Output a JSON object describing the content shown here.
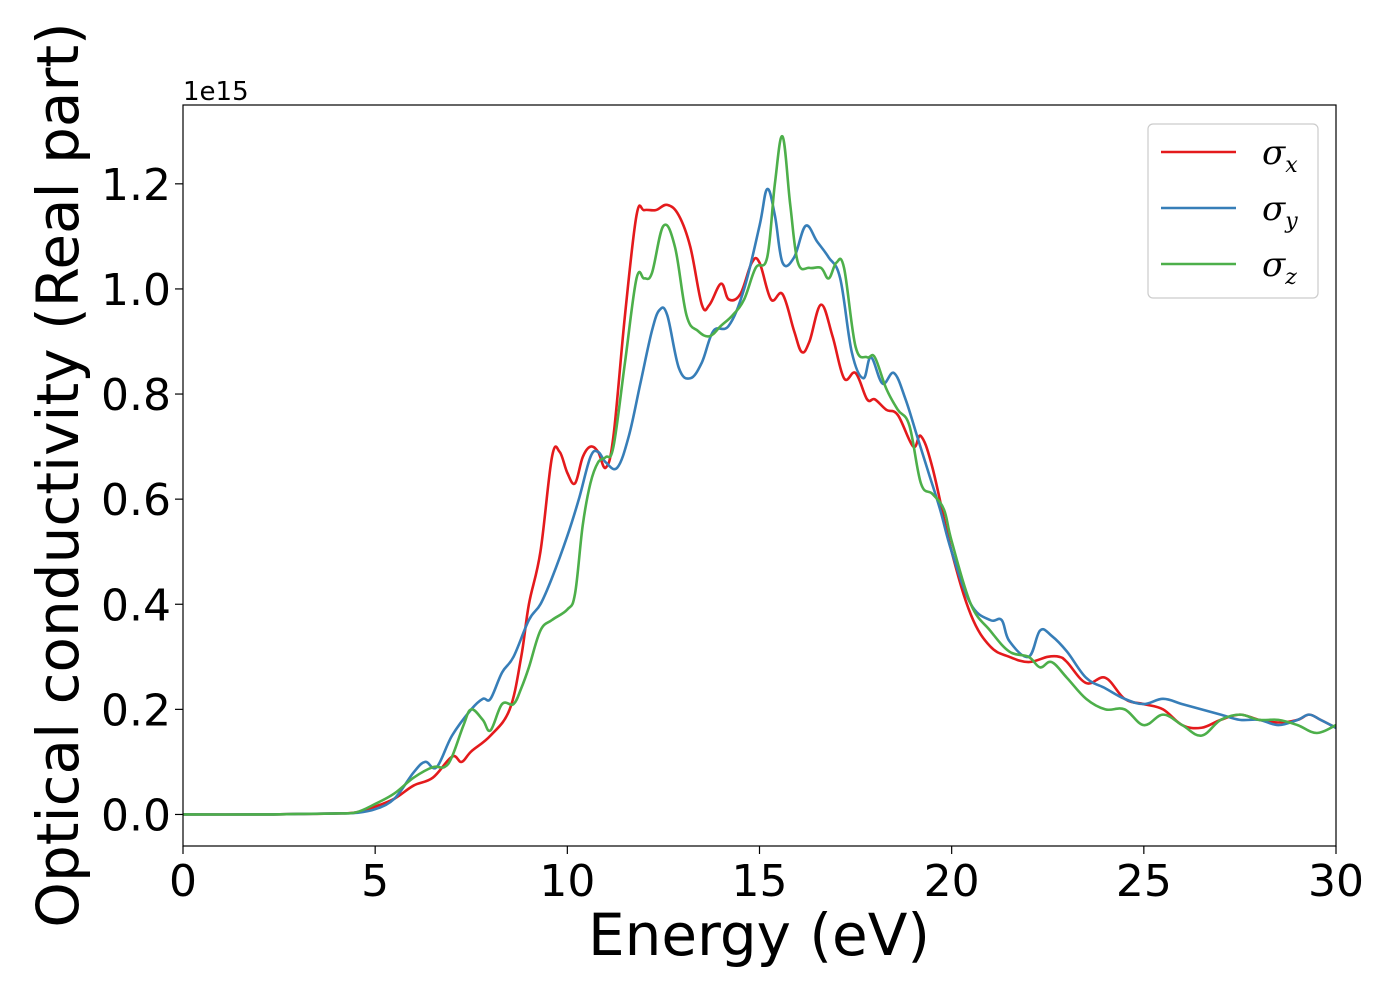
{
  "chart_data": {
    "type": "line",
    "xlabel": "Energy (eV)",
    "ylabel": "Optical conductivity (Real part)",
    "y_offset_label": "1e15",
    "xlim": [
      0,
      30
    ],
    "ylim": [
      -0.06,
      1.35
    ],
    "xticks": [
      0,
      5,
      10,
      15,
      20,
      25,
      30
    ],
    "yticks": [
      0.0,
      0.2,
      0.4,
      0.6,
      0.8,
      1.0,
      1.2
    ],
    "ytick_labels": [
      "0.0",
      "0.2",
      "0.4",
      "0.6",
      "0.8",
      "1.0",
      "1.2"
    ],
    "grid": false,
    "legend_position": "top-right",
    "series": [
      {
        "name": "σx",
        "symbol": "σ",
        "subscript": "x",
        "color": "#e41a1c",
        "x": [
          0,
          2,
          3,
          4,
          4.5,
          5,
          5.5,
          6,
          6.5,
          7,
          7.25,
          7.5,
          8,
          8.5,
          8.8,
          9,
          9.3,
          9.6,
          9.8,
          10,
          10.2,
          10.4,
          10.6,
          10.8,
          11,
          11.2,
          11.5,
          11.8,
          12,
          12.3,
          12.6,
          12.9,
          13.2,
          13.5,
          13.7,
          14,
          14.2,
          14.5,
          14.8,
          15,
          15.3,
          15.6,
          15.9,
          16.1,
          16.3,
          16.6,
          16.9,
          17.2,
          17.5,
          17.8,
          18,
          18.3,
          18.6,
          19,
          19.2,
          19.5,
          20,
          20.5,
          21,
          21.5,
          22,
          22.5,
          22.8,
          23,
          23.5,
          24,
          24.5,
          25,
          25.5,
          26,
          26.5,
          27,
          27.5,
          28,
          28.5,
          29,
          29.3,
          29.6,
          30
        ],
        "y": [
          0,
          0,
          0.001,
          0.002,
          0.004,
          0.015,
          0.03,
          0.055,
          0.07,
          0.11,
          0.1,
          0.12,
          0.15,
          0.2,
          0.3,
          0.4,
          0.5,
          0.68,
          0.69,
          0.65,
          0.63,
          0.68,
          0.7,
          0.69,
          0.66,
          0.72,
          0.95,
          1.14,
          1.15,
          1.15,
          1.16,
          1.14,
          1.08,
          0.97,
          0.97,
          1.01,
          0.98,
          0.99,
          1.05,
          1.05,
          0.98,
          0.99,
          0.92,
          0.88,
          0.9,
          0.97,
          0.91,
          0.83,
          0.84,
          0.79,
          0.79,
          0.77,
          0.76,
          0.7,
          0.72,
          0.66,
          0.5,
          0.38,
          0.32,
          0.3,
          0.29,
          0.3,
          0.3,
          0.29,
          0.25,
          0.26,
          0.22,
          0.21,
          0.2,
          0.17,
          0.165,
          0.18,
          0.19,
          0.18,
          0.175,
          0.18,
          0.19,
          0.18,
          0.165
        ]
      },
      {
        "name": "σy",
        "symbol": "σ",
        "subscript": "y",
        "color": "#377eb8",
        "x": [
          0,
          2,
          3,
          4,
          4.5,
          5,
          5.5,
          6,
          6.3,
          6.6,
          7,
          7.5,
          7.8,
          8,
          8.3,
          8.6,
          9,
          9.3,
          9.6,
          10,
          10.3,
          10.6,
          10.8,
          11,
          11.3,
          11.6,
          11.9,
          12.2,
          12.4,
          12.6,
          12.9,
          13.2,
          13.5,
          13.8,
          14.2,
          14.6,
          15,
          15.2,
          15.4,
          15.6,
          15.9,
          16.2,
          16.5,
          16.8,
          17.1,
          17.4,
          17.7,
          17.9,
          18.2,
          18.5,
          18.8,
          19.1,
          19.4,
          19.7,
          20,
          20.5,
          21,
          21.3,
          21.5,
          22,
          22.3,
          22.6,
          23,
          23.5,
          24,
          24.5,
          25,
          25.5,
          26,
          26.5,
          27,
          27.5,
          28,
          28.5,
          29,
          29.3,
          29.6,
          30
        ],
        "y": [
          0,
          0,
          0.001,
          0.002,
          0.003,
          0.01,
          0.03,
          0.08,
          0.1,
          0.09,
          0.15,
          0.2,
          0.22,
          0.22,
          0.27,
          0.3,
          0.37,
          0.4,
          0.45,
          0.53,
          0.6,
          0.68,
          0.69,
          0.67,
          0.66,
          0.72,
          0.82,
          0.92,
          0.96,
          0.95,
          0.85,
          0.83,
          0.86,
          0.92,
          0.93,
          1.0,
          1.12,
          1.19,
          1.14,
          1.05,
          1.06,
          1.12,
          1.09,
          1.06,
          1.02,
          0.88,
          0.83,
          0.87,
          0.82,
          0.84,
          0.79,
          0.72,
          0.65,
          0.58,
          0.5,
          0.4,
          0.37,
          0.37,
          0.33,
          0.3,
          0.35,
          0.34,
          0.31,
          0.26,
          0.24,
          0.22,
          0.21,
          0.22,
          0.21,
          0.2,
          0.19,
          0.18,
          0.18,
          0.17,
          0.18,
          0.19,
          0.18,
          0.165
        ]
      },
      {
        "name": "σz",
        "symbol": "σ",
        "subscript": "z",
        "color": "#4daf4a",
        "x": [
          0,
          2,
          3,
          4,
          4.5,
          5,
          5.5,
          6,
          6.5,
          6.8,
          7,
          7.3,
          7.5,
          7.8,
          8,
          8.3,
          8.6,
          8.8,
          9,
          9.3,
          9.6,
          10,
          10.2,
          10.4,
          10.6,
          10.8,
          11,
          11.2,
          11.5,
          11.8,
          12,
          12.2,
          12.5,
          12.8,
          13.1,
          13.4,
          13.7,
          14,
          14.3,
          14.6,
          14.9,
          15.2,
          15.4,
          15.6,
          15.8,
          16,
          16.3,
          16.6,
          16.8,
          17,
          17.2,
          17.5,
          17.8,
          18,
          18.3,
          18.6,
          18.9,
          19.2,
          19.5,
          19.8,
          20,
          20.5,
          21,
          21.5,
          22,
          22.3,
          22.6,
          23,
          23.5,
          24,
          24.5,
          25,
          25.5,
          26,
          26.5,
          27,
          27.5,
          28,
          28.5,
          29,
          29.5,
          30
        ],
        "y": [
          0,
          0,
          0.001,
          0.002,
          0.004,
          0.02,
          0.04,
          0.07,
          0.09,
          0.09,
          0.11,
          0.17,
          0.2,
          0.18,
          0.16,
          0.21,
          0.21,
          0.24,
          0.28,
          0.35,
          0.37,
          0.39,
          0.42,
          0.55,
          0.63,
          0.67,
          0.68,
          0.7,
          0.86,
          1.02,
          1.02,
          1.03,
          1.12,
          1.08,
          0.95,
          0.92,
          0.91,
          0.93,
          0.95,
          0.98,
          1.04,
          1.06,
          1.2,
          1.29,
          1.16,
          1.05,
          1.04,
          1.04,
          1.02,
          1.05,
          1.04,
          0.89,
          0.87,
          0.87,
          0.81,
          0.77,
          0.74,
          0.63,
          0.61,
          0.58,
          0.52,
          0.4,
          0.35,
          0.31,
          0.3,
          0.28,
          0.29,
          0.26,
          0.22,
          0.2,
          0.2,
          0.17,
          0.19,
          0.17,
          0.15,
          0.18,
          0.19,
          0.18,
          0.18,
          0.17,
          0.155,
          0.17
        ]
      }
    ]
  }
}
